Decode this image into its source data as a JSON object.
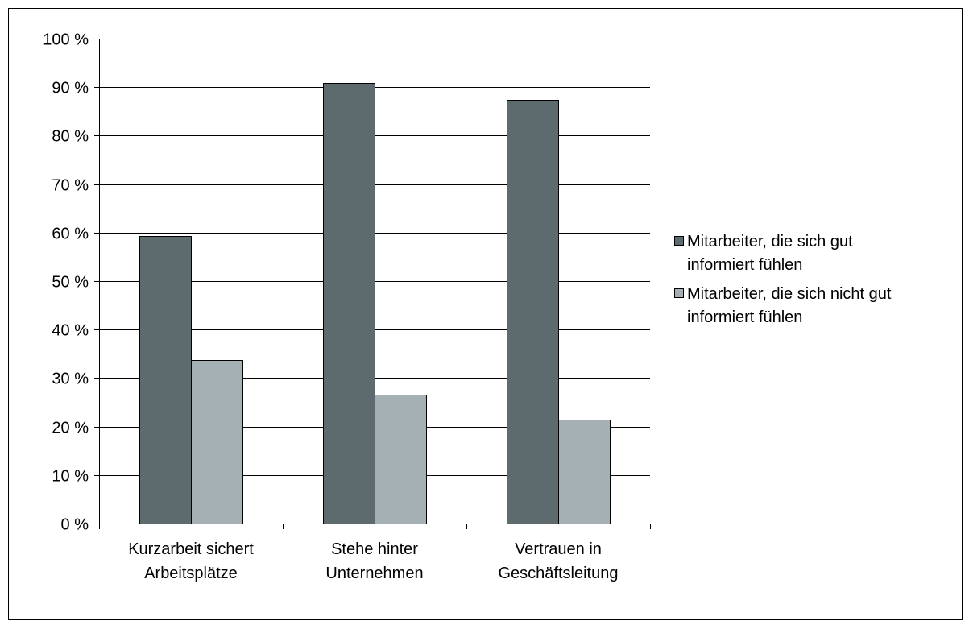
{
  "chart_data": {
    "type": "bar",
    "categories": [
      [
        "Kurzarbeit sichert",
        "Arbeitsplätze"
      ],
      [
        "Stehe hinter",
        "Unternehmen"
      ],
      [
        "Vertrauen in",
        "Geschäftsleitung"
      ]
    ],
    "series": [
      {
        "name": [
          "Mitarbeiter, die sich gut",
          "informiert fühlen"
        ],
        "values": [
          59.3,
          90.9,
          87.3
        ],
        "color": "#5d6b6e"
      },
      {
        "name": [
          "Mitarbeiter, die sich nicht gut",
          "informiert fühlen"
        ],
        "values": [
          33.8,
          26.6,
          21.4
        ],
        "color": "#a4b0b3"
      }
    ],
    "ylim": [
      0,
      100
    ],
    "yticks": [
      0,
      10,
      20,
      30,
      40,
      50,
      60,
      70,
      80,
      90,
      100
    ],
    "ytick_labels": [
      "0 %",
      "10 %",
      "20 %",
      "30 %",
      "40 %",
      "50 %",
      "60 %",
      "70 %",
      "80 %",
      "90 %",
      "100 %"
    ],
    "grid": true,
    "legend_position": "right"
  }
}
